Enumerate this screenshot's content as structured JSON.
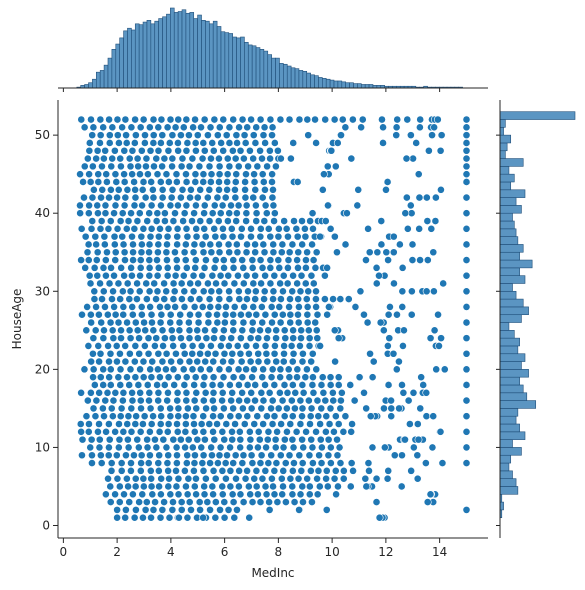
{
  "chart_data": {
    "type": "scatter",
    "title": "",
    "xlabel": "MedInc",
    "ylabel": "HouseAge",
    "xlim": [
      -0.2,
      15.8
    ],
    "ylim": [
      -1.6,
      54.5
    ],
    "xticks": [
      0,
      2,
      4,
      6,
      8,
      10,
      12,
      14
    ],
    "yticks": [
      0,
      10,
      20,
      30,
      40,
      50
    ],
    "grid": false,
    "legend": "none",
    "colors": {
      "points": "#1f77b4",
      "point_edge": "#ffffff",
      "hist_fill": "#5b95c2",
      "hist_edge": "#1f4e79"
    },
    "marginal_x_hist": {
      "bin_start": 0.5,
      "bin_width": 0.145,
      "counts": [
        1,
        3,
        4,
        6,
        10,
        18,
        20,
        26,
        34,
        44,
        50,
        57,
        65,
        68,
        66,
        73,
        72,
        75,
        77,
        73,
        76,
        79,
        81,
        84,
        91,
        86,
        87,
        89,
        85,
        86,
        79,
        83,
        77,
        76,
        73,
        76,
        70,
        64,
        63,
        62,
        58,
        57,
        58,
        52,
        49,
        48,
        46,
        44,
        42,
        38,
        34,
        34,
        28,
        27,
        25,
        23,
        22,
        20,
        19,
        17,
        15,
        14,
        12,
        11,
        10,
        9,
        8,
        8,
        7,
        6,
        6,
        5,
        5,
        4,
        4,
        4,
        3,
        3,
        3,
        2,
        2,
        2,
        2,
        2,
        2,
        2,
        2,
        1,
        1,
        2,
        1,
        1,
        1,
        1,
        1,
        1,
        1,
        1,
        1,
        0,
        0,
        0,
        0,
        0,
        0,
        0,
        0,
        0,
        0,
        0,
        0,
        0,
        0,
        0,
        0,
        0,
        0,
        0,
        0,
        0,
        0,
        0,
        0,
        0,
        0,
        0,
        0,
        0,
        0,
        0,
        0,
        0,
        0,
        0,
        0,
        7,
        0
      ]
    },
    "marginal_y_hist": {
      "bin_start": 1,
      "bin_width": 1.0,
      "counts": [
        1,
        2,
        1,
        10,
        9,
        7,
        5,
        6,
        12,
        7,
        14,
        11,
        9,
        10,
        20,
        15,
        13,
        11,
        16,
        12,
        14,
        10,
        11,
        8,
        5,
        12,
        16,
        13,
        9,
        7,
        14,
        11,
        18,
        11,
        13,
        10,
        9,
        8,
        7,
        12,
        9,
        14,
        6,
        8,
        5,
        13,
        3,
        4,
        6,
        2,
        3,
        42
      ]
    }
  }
}
